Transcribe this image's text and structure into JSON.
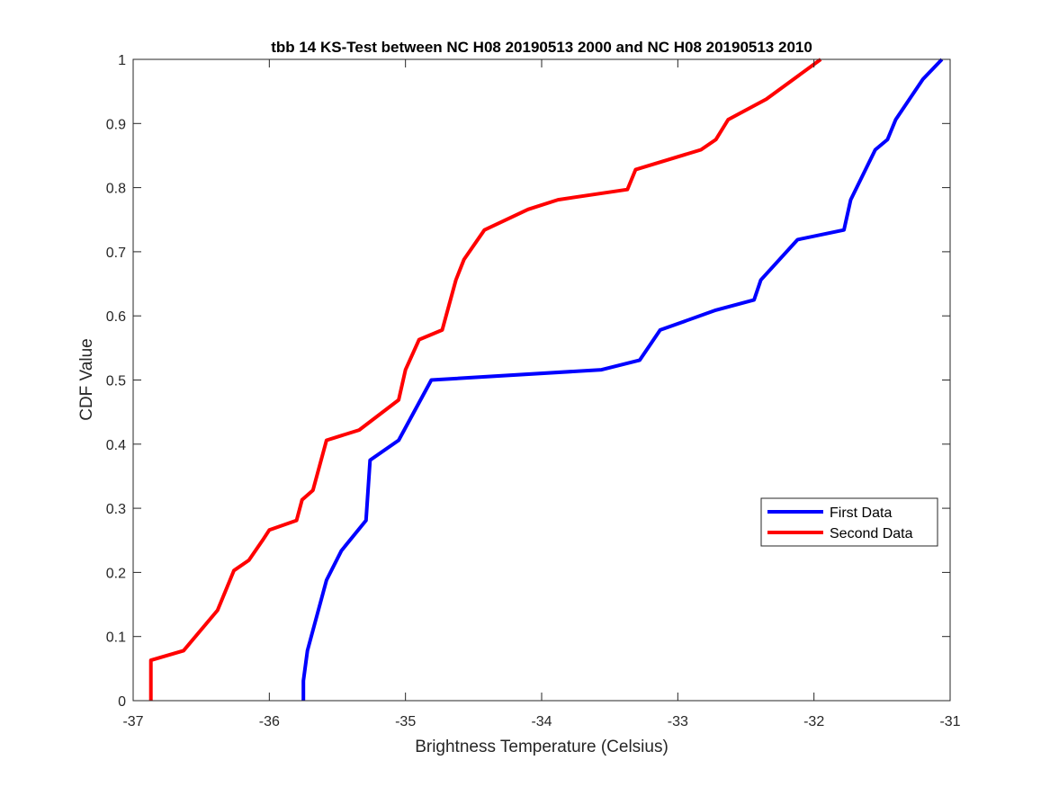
{
  "chart_data": {
    "type": "line",
    "title": "tbb 14 KS-Test between NC H08 20190513 2000 and NC H08 20190513 2010",
    "xlabel": "Brightness Temperature (Celsius)",
    "ylabel": "CDF Value",
    "xlim": [
      -37,
      -31
    ],
    "ylim": [
      0,
      1
    ],
    "xticks": [
      -37,
      -36,
      -35,
      -34,
      -33,
      -32,
      -31
    ],
    "yticks": [
      0,
      0.1,
      0.2,
      0.3,
      0.4,
      0.5,
      0.6,
      0.7,
      0.8,
      0.9,
      1
    ],
    "grid": false,
    "legend_position": "middle-right",
    "series": [
      {
        "name": "First Data",
        "color": "#0000ff",
        "points": [
          [
            -35.75,
            0
          ],
          [
            -35.75,
            0.031
          ],
          [
            -35.72,
            0.078
          ],
          [
            -35.58,
            0.188
          ],
          [
            -35.47,
            0.234
          ],
          [
            -35.29,
            0.281
          ],
          [
            -35.26,
            0.375
          ],
          [
            -35.05,
            0.406
          ],
          [
            -34.81,
            0.5
          ],
          [
            -33.56,
            0.516
          ],
          [
            -33.28,
            0.531
          ],
          [
            -33.13,
            0.578
          ],
          [
            -32.72,
            0.609
          ],
          [
            -32.44,
            0.625
          ],
          [
            -32.39,
            0.656
          ],
          [
            -32.12,
            0.719
          ],
          [
            -31.78,
            0.734
          ],
          [
            -31.73,
            0.781
          ],
          [
            -31.55,
            0.859
          ],
          [
            -31.46,
            0.875
          ],
          [
            -31.4,
            0.906
          ],
          [
            -31.2,
            0.969
          ],
          [
            -31.06,
            1
          ]
        ]
      },
      {
        "name": "Second Data",
        "color": "#ff0000",
        "points": [
          [
            -36.87,
            0
          ],
          [
            -36.87,
            0.063
          ],
          [
            -36.63,
            0.078
          ],
          [
            -36.38,
            0.141
          ],
          [
            -36.26,
            0.203
          ],
          [
            -36.15,
            0.219
          ],
          [
            -36.05,
            0.25
          ],
          [
            -36.0,
            0.266
          ],
          [
            -35.8,
            0.281
          ],
          [
            -35.76,
            0.313
          ],
          [
            -35.68,
            0.328
          ],
          [
            -35.58,
            0.406
          ],
          [
            -35.34,
            0.422
          ],
          [
            -35.05,
            0.469
          ],
          [
            -35.0,
            0.516
          ],
          [
            -34.9,
            0.563
          ],
          [
            -34.73,
            0.578
          ],
          [
            -34.63,
            0.656
          ],
          [
            -34.57,
            0.688
          ],
          [
            -34.42,
            0.734
          ],
          [
            -34.1,
            0.766
          ],
          [
            -33.88,
            0.781
          ],
          [
            -33.37,
            0.797
          ],
          [
            -33.31,
            0.828
          ],
          [
            -32.83,
            0.859
          ],
          [
            -32.72,
            0.875
          ],
          [
            -32.63,
            0.906
          ],
          [
            -32.35,
            0.938
          ],
          [
            -31.95,
            1
          ]
        ]
      }
    ]
  }
}
